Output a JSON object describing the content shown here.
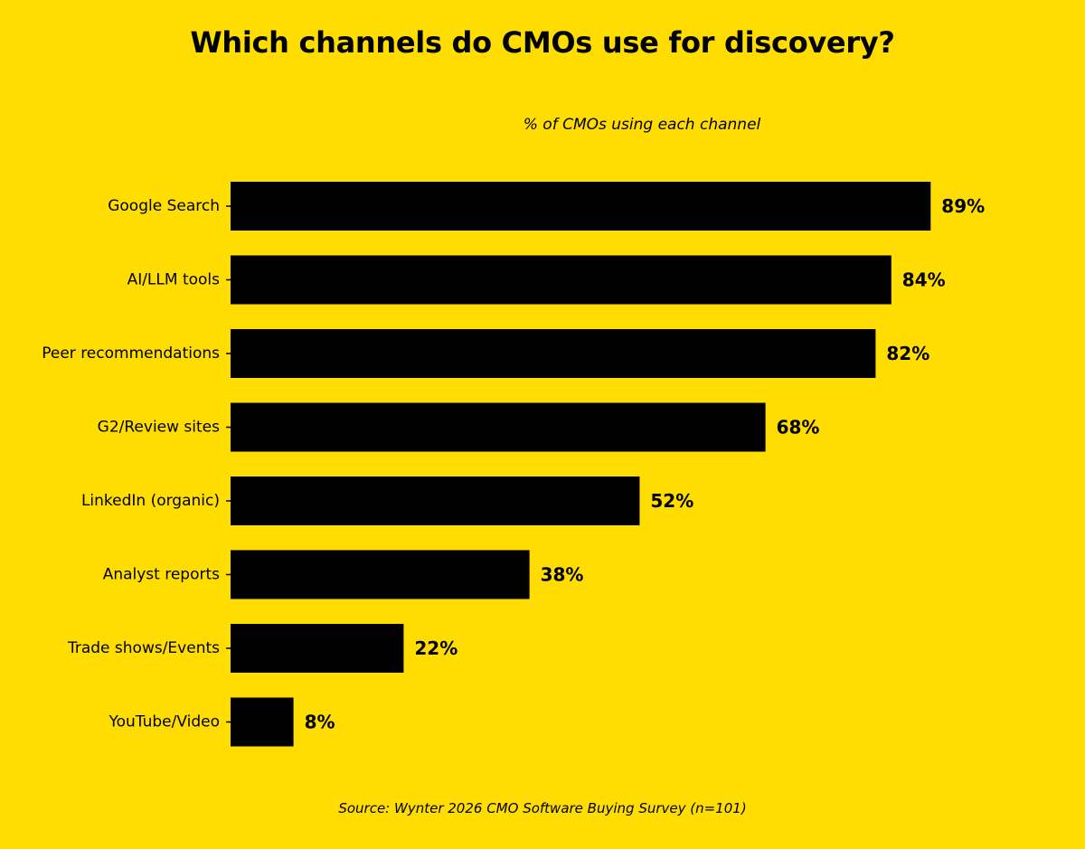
{
  "chart_data": {
    "type": "bar",
    "orientation": "horizontal",
    "title": "Which channels do CMOs use for discovery?",
    "subtitle": "% of CMOs using each channel",
    "source": "Source: Wynter 2026 CMO Software Buying Survey (n=101)",
    "categories": [
      "Google Search",
      "AI/LLM tools",
      "Peer recommendations",
      "G2/Review sites",
      "LinkedIn (organic)",
      "Analyst reports",
      "Trade shows/Events",
      "YouTube/Video"
    ],
    "values": [
      89,
      84,
      82,
      68,
      52,
      38,
      22,
      8
    ],
    "value_suffix": "%",
    "xlim": [
      0,
      100
    ],
    "grid": false,
    "legend": "none",
    "colors": {
      "background": "#FFDD00",
      "bar": "#000000",
      "text": "#000000"
    }
  }
}
